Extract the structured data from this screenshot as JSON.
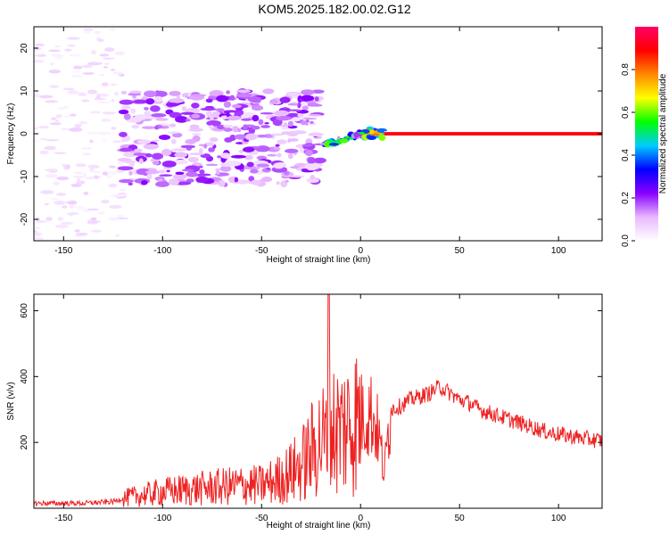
{
  "page": {
    "title": "KOM5.2025.182.00.02.G12"
  },
  "chart_data": [
    {
      "type": "heatmap",
      "title": "KOM5.2025.182.00.02.G12",
      "xlabel": "Height of straight line (km)",
      "ylabel": "Frequency (Hz)",
      "xlim": [
        -165,
        122
      ],
      "ylim": [
        -25,
        25
      ],
      "xticks": [
        -150,
        -100,
        -50,
        0,
        50,
        100
      ],
      "yticks": [
        -20,
        -10,
        0,
        10,
        20
      ],
      "grid": false,
      "colorbar": {
        "label": "Normalized spectral amplitude",
        "range": [
          0.0,
          1.0
        ],
        "ticks": [
          0.0,
          0.2,
          0.4,
          0.6,
          0.8
        ],
        "colors": [
          "#ffffff",
          "#e8b8ff",
          "#8800ff",
          "#0000ff",
          "#00ccff",
          "#00ff00",
          "#ffff00",
          "#ff8800",
          "#ff0000",
          "#ff0066"
        ]
      },
      "regions": [
        {
          "x_range": [
            -165,
            -120
          ],
          "freq_range": [
            -25,
            25
          ],
          "amplitude": 0.05
        },
        {
          "x_range": [
            -120,
            -20
          ],
          "freq_range": [
            -12,
            10
          ],
          "amplitude": 0.15
        },
        {
          "x_range": [
            -20,
            0
          ],
          "freq_range": [
            -3,
            1
          ],
          "amplitude": 0.4
        },
        {
          "x_range": [
            0,
            12
          ],
          "freq_range": [
            -1,
            1
          ],
          "amplitude": 0.55
        },
        {
          "x_range": [
            12,
            122
          ],
          "freq_range": [
            -0.6,
            0.6
          ],
          "amplitude": 0.9
        }
      ]
    },
    {
      "type": "line",
      "xlabel": "Height of straight line (km)",
      "ylabel": "SNR (v/v)",
      "xlim": [
        -165,
        122
      ],
      "ylim": [
        0,
        650
      ],
      "xticks": [
        -150,
        -100,
        -50,
        0,
        50,
        100
      ],
      "yticks": [
        200,
        400,
        600
      ],
      "grid": false,
      "color": "#ee2222",
      "series": [
        {
          "x": [
            -165,
            -140,
            -125,
            -120,
            -110,
            -100,
            -90,
            -80,
            -70,
            -60,
            -50,
            -45,
            -40,
            -35,
            -30,
            -25,
            -20,
            -17,
            -16,
            -15,
            -10,
            -5,
            0,
            5,
            8,
            10,
            12,
            15,
            20,
            25,
            30,
            35,
            40,
            45,
            50,
            55,
            60,
            65,
            70,
            75,
            80,
            85,
            90,
            95,
            100,
            105,
            110,
            115,
            122
          ],
          "y": [
            15,
            15,
            20,
            30,
            40,
            50,
            55,
            60,
            65,
            70,
            70,
            80,
            90,
            110,
            130,
            170,
            210,
            200,
            650,
            240,
            240,
            260,
            280,
            290,
            250,
            190,
            100,
            300,
            310,
            330,
            340,
            350,
            370,
            350,
            330,
            320,
            300,
            290,
            280,
            270,
            260,
            250,
            240,
            230,
            225,
            220,
            215,
            210,
            205
          ]
        }
      ]
    }
  ]
}
